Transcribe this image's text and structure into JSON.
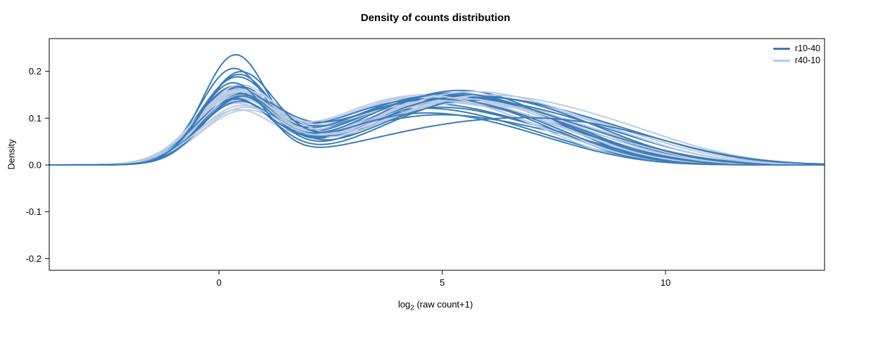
{
  "chart_data": {
    "type": "line",
    "title": "Density of counts distribution",
    "ylabel": "Density",
    "xlabel": {
      "prefix": "log",
      "sub": "2",
      "suffix": " (raw count+1)"
    },
    "xlim": [
      -3.8,
      13.56
    ],
    "ylim": [
      -0.225,
      0.27
    ],
    "grid": false,
    "legend_position": "top-right",
    "x_ticks": {
      "values": [
        0,
        5,
        10
      ],
      "labels": [
        "0",
        "5",
        "10"
      ]
    },
    "y_ticks": {
      "values": [
        -0.2,
        -0.1,
        0.0,
        0.1,
        0.2
      ],
      "labels": [
        "-0.2",
        "-0.1",
        "0.0",
        "0.1",
        "0.2"
      ]
    },
    "curve_model": "each curve is a density y(x) = sum of Gaussian components, params listed as triples [height, mean, sd]",
    "series": [
      {
        "name": "r10-40",
        "color": "#3a7cb8",
        "curves": [
          [
            0.225,
            0.35,
            0.72,
            0.1,
            4.6,
            2.0,
            0.035,
            7.6,
            1.6
          ],
          [
            0.195,
            0.3,
            0.75,
            0.115,
            4.4,
            1.9,
            0.03,
            7.2,
            1.5
          ],
          [
            0.185,
            0.42,
            0.78,
            0.12,
            4.8,
            1.9,
            0.03,
            7.8,
            1.4
          ],
          [
            0.17,
            0.35,
            0.8,
            0.125,
            4.3,
            2.0,
            0.04,
            7.4,
            1.6
          ],
          [
            0.16,
            0.45,
            0.82,
            0.13,
            5.0,
            1.9,
            0.035,
            8.0,
            1.5
          ],
          [
            0.155,
            0.3,
            0.8,
            0.135,
            4.6,
            2.0,
            0.03,
            7.0,
            1.4
          ],
          [
            0.15,
            0.4,
            0.85,
            0.14,
            5.2,
            1.8,
            0.04,
            8.2,
            1.6
          ],
          [
            0.148,
            0.35,
            0.8,
            0.143,
            4.9,
            2.1,
            0.03,
            7.5,
            1.5
          ],
          [
            0.146,
            0.5,
            0.85,
            0.128,
            5.4,
            2.0,
            0.045,
            8.5,
            1.7
          ],
          [
            0.143,
            0.3,
            0.82,
            0.138,
            4.5,
            2.2,
            0.035,
            7.8,
            1.5
          ],
          [
            0.14,
            0.45,
            0.8,
            0.148,
            5.1,
            1.9,
            0.03,
            7.2,
            1.4
          ],
          [
            0.138,
            0.35,
            0.85,
            0.132,
            5.6,
            2.0,
            0.05,
            8.8,
            1.8
          ],
          [
            0.134,
            0.4,
            0.8,
            0.142,
            4.7,
            2.1,
            0.04,
            7.6,
            1.5
          ],
          [
            0.13,
            0.3,
            0.85,
            0.138,
            5.3,
            2.2,
            0.035,
            8.0,
            1.6
          ],
          [
            0.128,
            0.5,
            0.9,
            0.128,
            4.4,
            2.0,
            0.045,
            7.0,
            1.5
          ],
          [
            0.125,
            0.4,
            0.85,
            0.147,
            5.0,
            2.0,
            0.04,
            8.3,
            1.7
          ],
          [
            0.168,
            0.3,
            0.75,
            0.08,
            5.5,
            2.4,
            0.05,
            8.6,
            1.9
          ],
          [
            0.188,
            0.45,
            0.8,
            0.098,
            4.2,
            1.8,
            0.04,
            6.8,
            1.6
          ]
        ]
      },
      {
        "name": "r40-10",
        "color": "#bccbe4",
        "curves": [
          [
            0.098,
            0.45,
            0.9,
            0.128,
            4.6,
            2.1,
            0.04,
            7.8,
            1.6
          ],
          [
            0.108,
            0.35,
            0.85,
            0.133,
            4.9,
            2.0,
            0.035,
            7.4,
            1.5
          ],
          [
            0.113,
            0.5,
            0.9,
            0.14,
            5.1,
            2.0,
            0.04,
            8.0,
            1.6
          ],
          [
            0.118,
            0.4,
            0.85,
            0.144,
            4.5,
            2.1,
            0.03,
            7.0,
            1.4
          ],
          [
            0.123,
            0.35,
            0.9,
            0.138,
            5.3,
            2.1,
            0.045,
            8.4,
            1.7
          ],
          [
            0.128,
            0.45,
            0.85,
            0.134,
            4.7,
            2.0,
            0.035,
            7.6,
            1.5
          ],
          [
            0.133,
            0.3,
            0.9,
            0.128,
            5.0,
            2.2,
            0.04,
            8.2,
            1.6
          ],
          [
            0.138,
            0.4,
            0.85,
            0.14,
            4.4,
            2.0,
            0.03,
            7.2,
            1.5
          ],
          [
            0.143,
            0.5,
            0.9,
            0.133,
            5.5,
            2.1,
            0.045,
            8.6,
            1.8
          ],
          [
            0.148,
            0.35,
            0.85,
            0.128,
            4.8,
            2.0,
            0.035,
            7.5,
            1.5
          ],
          [
            0.152,
            0.45,
            0.9,
            0.123,
            5.2,
            2.1,
            0.04,
            8.0,
            1.6
          ],
          [
            0.15,
            0.4,
            0.85,
            0.128,
            4.6,
            2.2,
            0.035,
            7.3,
            1.5
          ],
          [
            0.152,
            0.35,
            0.9,
            0.133,
            5.0,
            2.0,
            0.04,
            7.9,
            1.6
          ],
          [
            0.148,
            0.55,
            0.95,
            0.138,
            5.6,
            2.2,
            0.05,
            8.9,
            1.8
          ],
          [
            0.138,
            0.3,
            0.85,
            0.143,
            4.3,
            2.0,
            0.03,
            6.9,
            1.4
          ],
          [
            0.118,
            0.45,
            0.9,
            0.148,
            5.4,
            2.1,
            0.04,
            8.5,
            1.7
          ]
        ]
      }
    ]
  }
}
